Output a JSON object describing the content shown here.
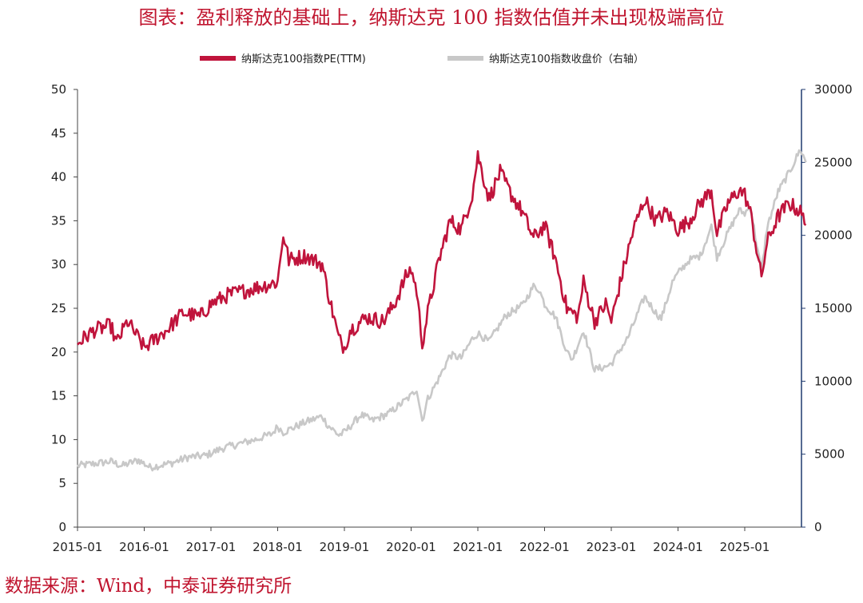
{
  "title": "图表：盈利释放的基础上，纳斯达克 100 指数估值并未出现极端高位",
  "source": "数据来源：Wind，中泰证券研究所",
  "chart_data": {
    "type": "line",
    "legend": [
      "纳斯达克100指数PE(TTM)",
      "纳斯达克100指数收盘价（右轴）"
    ],
    "legend_position": "top-center",
    "grid": false,
    "x_ticks": [
      "2015-01",
      "2016-01",
      "2017-01",
      "2018-01",
      "2019-01",
      "2020-01",
      "2021-01",
      "2022-01",
      "2023-01",
      "2024-01",
      "2025-01"
    ],
    "y_left": {
      "range": [
        0,
        50
      ],
      "ticks": [
        "0",
        "5",
        "10",
        "15",
        "20",
        "25",
        "30",
        "35",
        "40",
        "45",
        "50"
      ]
    },
    "y_right": {
      "range": [
        0,
        30000
      ],
      "ticks": [
        "0",
        "5000",
        "10000",
        "15000",
        "20000",
        "25000",
        "30000"
      ]
    },
    "series": [
      {
        "name": "纳斯达克100指数PE(TTM)",
        "axis": "left",
        "color": "#c0143c",
        "points": [
          [
            "2015-01",
            21.0
          ],
          [
            "2015-04",
            22.5
          ],
          [
            "2015-07",
            23.0
          ],
          [
            "2015-08",
            21.0
          ],
          [
            "2015-10",
            23.5
          ],
          [
            "2016-01",
            20.5
          ],
          [
            "2016-02",
            21.0
          ],
          [
            "2016-05",
            22.5
          ],
          [
            "2016-08",
            24.5
          ],
          [
            "2016-11",
            24.0
          ],
          [
            "2017-01",
            25.5
          ],
          [
            "2017-04",
            26.5
          ],
          [
            "2017-07",
            27.0
          ],
          [
            "2017-10",
            27.5
          ],
          [
            "2018-01",
            28.0
          ],
          [
            "2018-02",
            33.5
          ],
          [
            "2018-03",
            30.5
          ],
          [
            "2018-06",
            31.0
          ],
          [
            "2018-09",
            30.0
          ],
          [
            "2018-10",
            27.0
          ],
          [
            "2018-12",
            21.5
          ],
          [
            "2019-01",
            20.5
          ],
          [
            "2019-02",
            22.5
          ],
          [
            "2019-05",
            24.0
          ],
          [
            "2019-08",
            23.5
          ],
          [
            "2019-10",
            25.5
          ],
          [
            "2019-12",
            28.5
          ],
          [
            "2020-01",
            29.5
          ],
          [
            "2020-02",
            27.0
          ],
          [
            "2020-03",
            21.0
          ],
          [
            "2020-04",
            24.5
          ],
          [
            "2020-06",
            30.5
          ],
          [
            "2020-08",
            35.0
          ],
          [
            "2020-10",
            34.0
          ],
          [
            "2020-12",
            38.0
          ],
          [
            "2021-01",
            42.5
          ],
          [
            "2021-03",
            37.5
          ],
          [
            "2021-05",
            40.5
          ],
          [
            "2021-07",
            38.0
          ],
          [
            "2021-09",
            36.0
          ],
          [
            "2021-11",
            33.0
          ],
          [
            "2022-01",
            34.5
          ],
          [
            "2022-03",
            30.5
          ],
          [
            "2022-05",
            25.0
          ],
          [
            "2022-07",
            24.0
          ],
          [
            "2022-08",
            28.0
          ],
          [
            "2022-10",
            23.5
          ],
          [
            "2022-12",
            25.5
          ],
          [
            "2023-01",
            23.5
          ],
          [
            "2023-03",
            29.0
          ],
          [
            "2023-05",
            34.0
          ],
          [
            "2023-07",
            37.5
          ],
          [
            "2023-09",
            35.0
          ],
          [
            "2023-11",
            36.0
          ],
          [
            "2024-01",
            34.0
          ],
          [
            "2024-03",
            35.0
          ],
          [
            "2024-05",
            37.0
          ],
          [
            "2024-07",
            38.5
          ],
          [
            "2024-08",
            33.5
          ],
          [
            "2024-10",
            37.0
          ],
          [
            "2024-12",
            38.5
          ],
          [
            "2025-01",
            38.0
          ],
          [
            "2025-02",
            36.0
          ],
          [
            "2025-04",
            28.5
          ],
          [
            "2025-05",
            32.5
          ],
          [
            "2025-07",
            35.5
          ],
          [
            "2025-09",
            37.0
          ],
          [
            "2025-11",
            36.0
          ],
          [
            "2025-12",
            34.5
          ]
        ]
      },
      {
        "name": "纳斯达克100指数收盘价（右轴）",
        "axis": "right",
        "color": "#c8c8c8",
        "points": [
          [
            "2015-01",
            4200
          ],
          [
            "2015-07",
            4500
          ],
          [
            "2015-09",
            4200
          ],
          [
            "2015-12",
            4600
          ],
          [
            "2016-02",
            4100
          ],
          [
            "2016-06",
            4400
          ],
          [
            "2016-09",
            4800
          ],
          [
            "2016-12",
            4900
          ],
          [
            "2017-03",
            5400
          ],
          [
            "2017-06",
            5700
          ],
          [
            "2017-09",
            6000
          ],
          [
            "2017-12",
            6400
          ],
          [
            "2018-01",
            6900
          ],
          [
            "2018-02",
            6500
          ],
          [
            "2018-06",
            7200
          ],
          [
            "2018-09",
            7600
          ],
          [
            "2018-10",
            7000
          ],
          [
            "2018-12",
            6300
          ],
          [
            "2019-01",
            6500
          ],
          [
            "2019-04",
            7700
          ],
          [
            "2019-06",
            7300
          ],
          [
            "2019-09",
            7800
          ],
          [
            "2019-12",
            8700
          ],
          [
            "2020-01",
            9000
          ],
          [
            "2020-02",
            9500
          ],
          [
            "2020-03",
            7300
          ],
          [
            "2020-04",
            8800
          ],
          [
            "2020-06",
            10200
          ],
          [
            "2020-08",
            11800
          ],
          [
            "2020-10",
            11600
          ],
          [
            "2020-12",
            12900
          ],
          [
            "2021-01",
            13300
          ],
          [
            "2021-03",
            12700
          ],
          [
            "2021-06",
            14500
          ],
          [
            "2021-09",
            15200
          ],
          [
            "2021-11",
            16500
          ],
          [
            "2021-12",
            16300
          ],
          [
            "2022-01",
            15300
          ],
          [
            "2022-03",
            14400
          ],
          [
            "2022-05",
            12000
          ],
          [
            "2022-06",
            11500
          ],
          [
            "2022-08",
            13500
          ],
          [
            "2022-10",
            10800
          ],
          [
            "2022-12",
            11000
          ],
          [
            "2023-01",
            11200
          ],
          [
            "2023-04",
            13000
          ],
          [
            "2023-07",
            15800
          ],
          [
            "2023-09",
            14700
          ],
          [
            "2023-10",
            14300
          ],
          [
            "2023-12",
            16800
          ],
          [
            "2024-01",
            17400
          ],
          [
            "2024-03",
            18300
          ],
          [
            "2024-05",
            18600
          ],
          [
            "2024-07",
            20600
          ],
          [
            "2024-08",
            18500
          ],
          [
            "2024-10",
            20200
          ],
          [
            "2024-12",
            21700
          ],
          [
            "2025-01",
            21500
          ],
          [
            "2025-02",
            22000
          ],
          [
            "2025-04",
            17500
          ],
          [
            "2025-05",
            20500
          ],
          [
            "2025-07",
            23000
          ],
          [
            "2025-09",
            24300
          ],
          [
            "2025-11",
            25900
          ],
          [
            "2025-12",
            25000
          ]
        ]
      }
    ]
  }
}
